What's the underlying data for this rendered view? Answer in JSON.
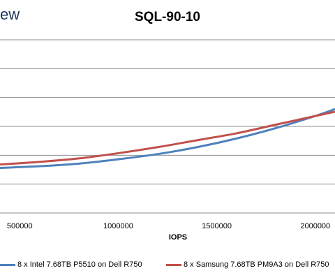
{
  "logo_text": "ew",
  "chart_data": {
    "type": "line",
    "title": "SQL-90-10",
    "xlabel": "IOPS",
    "ylabel": "",
    "x_ticks": [
      "500000",
      "1000000",
      "1500000",
      "2000000"
    ],
    "xlim": [
      400000,
      2100000
    ],
    "grid": true,
    "legend_position": "bottom",
    "series": [
      {
        "name": "8 x Intel 7.68TB P5510 on Dell R750",
        "color": "#4f81bd",
        "x": [
          400000,
          600000,
          800000,
          1000000,
          1200000,
          1400000,
          1600000,
          1800000,
          2000000,
          2100000
        ],
        "y": [
          0.26,
          0.27,
          0.285,
          0.31,
          0.34,
          0.38,
          0.43,
          0.49,
          0.56,
          0.6
        ]
      },
      {
        "name": "8 x Samsung 7.68TB PM9A3 on Dell R750",
        "color": "#c0504d",
        "x": [
          400000,
          600000,
          800000,
          1000000,
          1200000,
          1400000,
          1600000,
          1800000,
          2000000,
          2100000
        ],
        "y": [
          0.28,
          0.295,
          0.315,
          0.345,
          0.38,
          0.42,
          0.46,
          0.51,
          0.56,
          0.585
        ]
      }
    ]
  }
}
